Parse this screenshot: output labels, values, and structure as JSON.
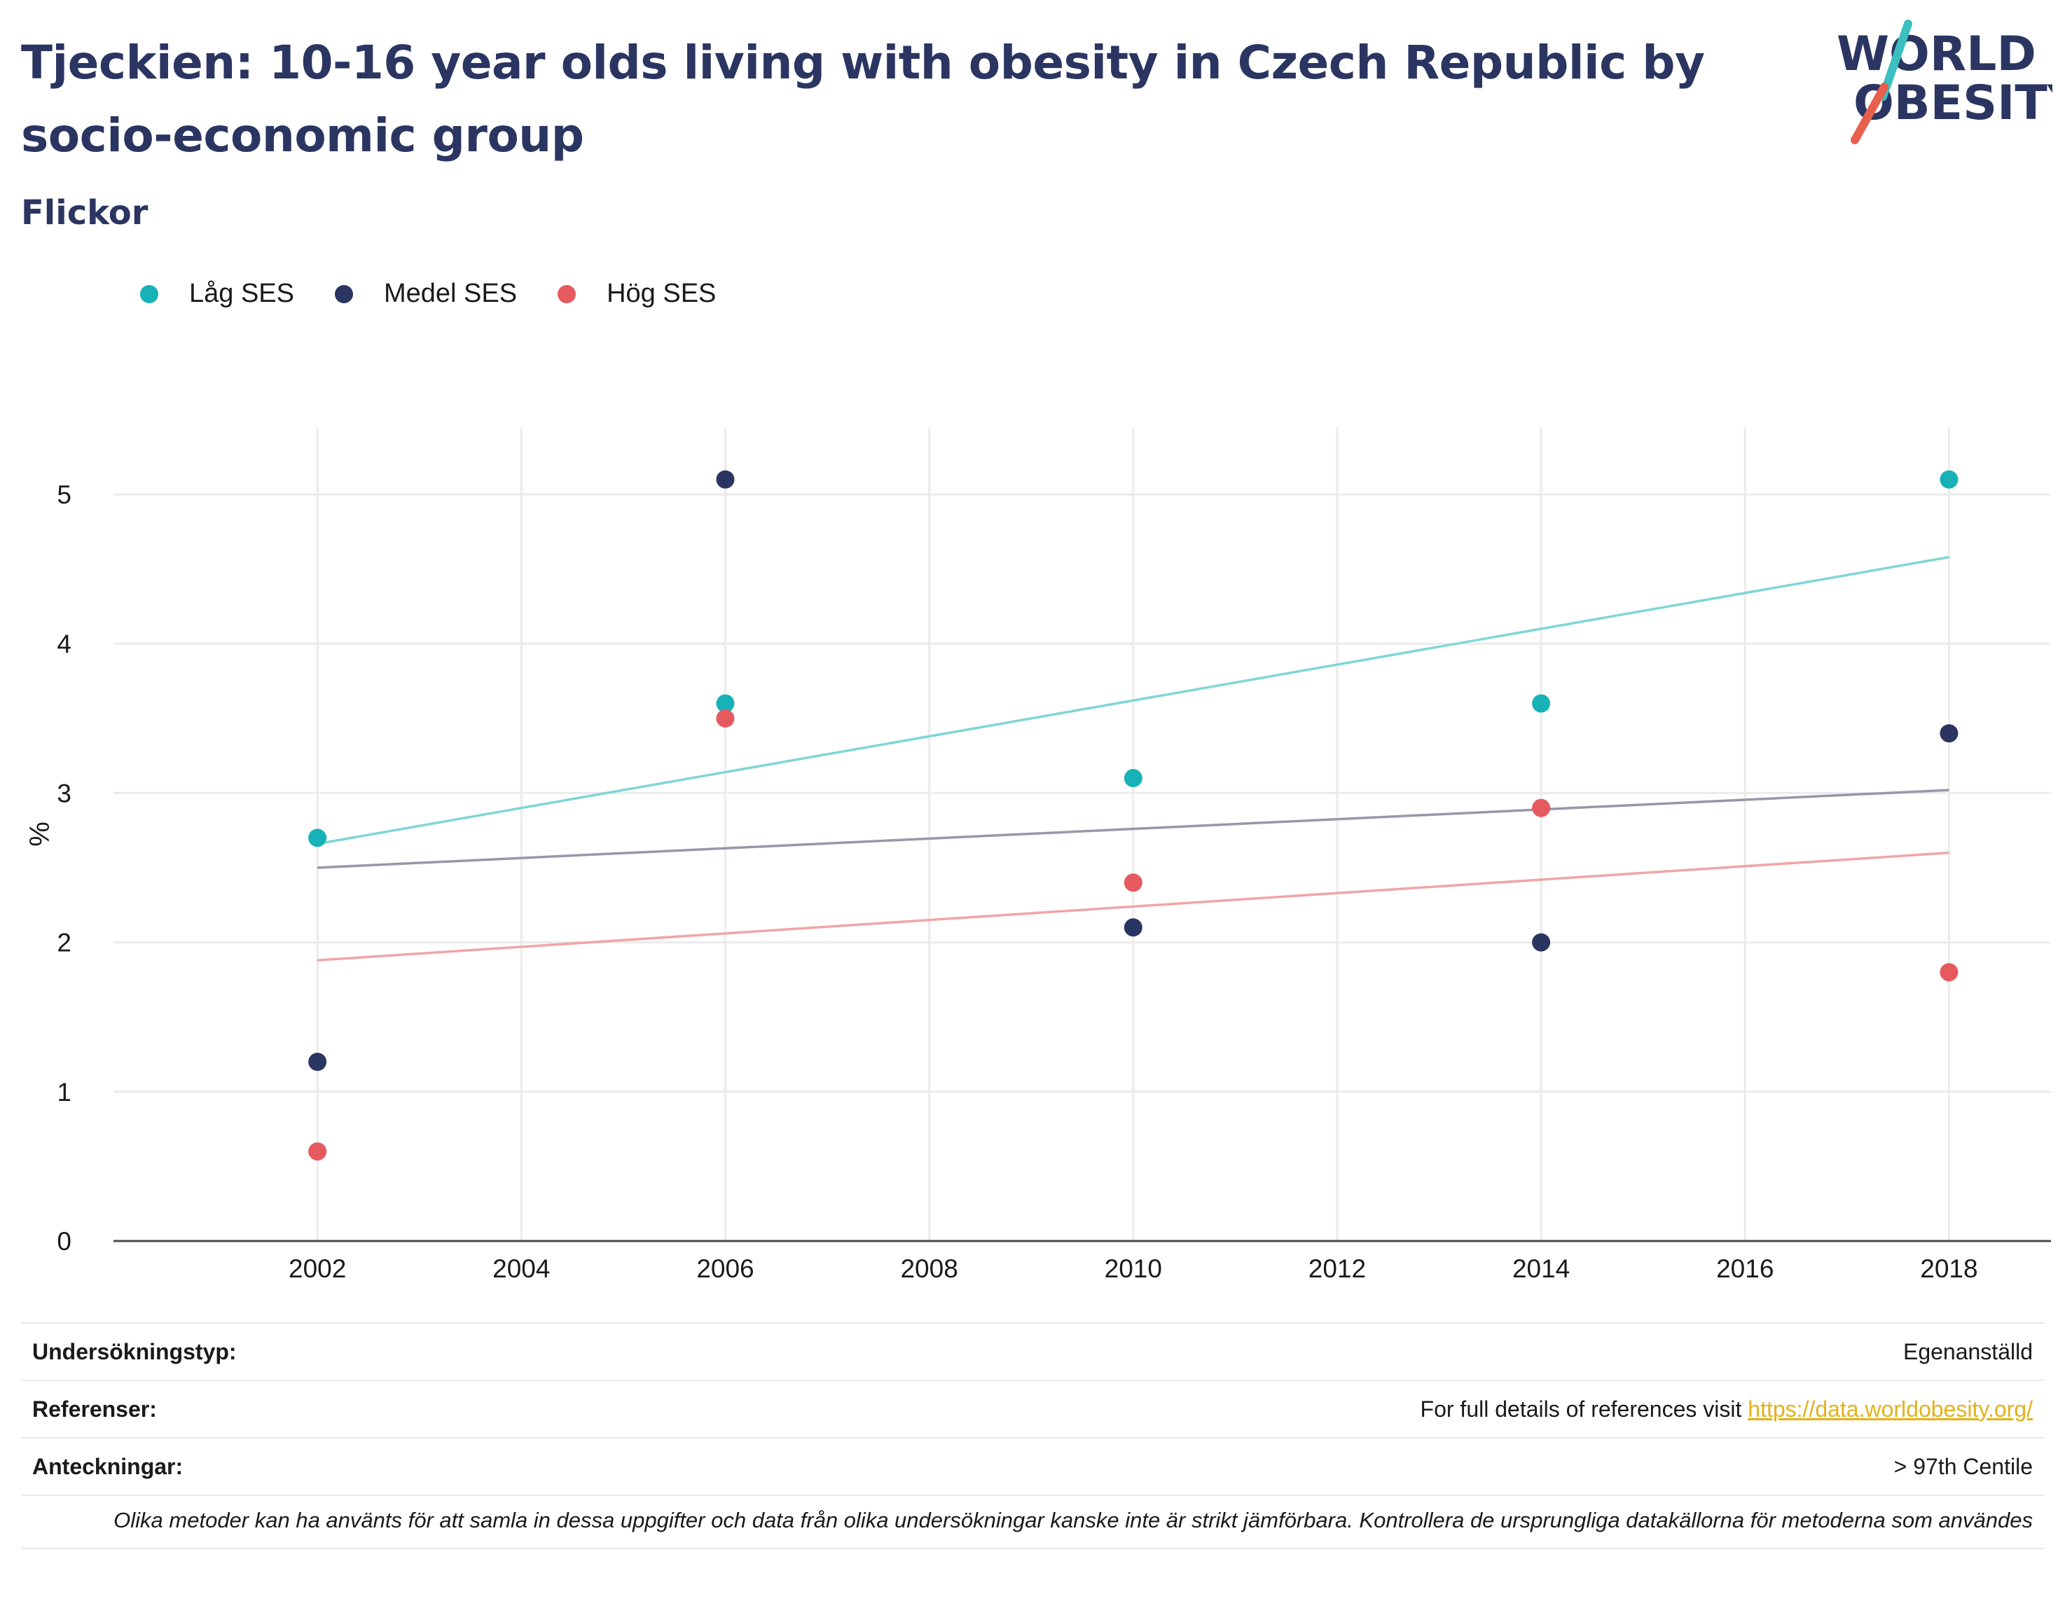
{
  "header": {
    "title": "Tjeckien: 10-16 year olds living with obesity in Czech Republic by socio-economic group",
    "subtitle": "Flickor"
  },
  "logo": {
    "line1": "WORLD",
    "line2": "OBESITY",
    "colors": {
      "text": "#2b3562",
      "slash_top": "#3bbfbf",
      "slash_bottom": "#e8604c"
    }
  },
  "legend": [
    {
      "label": "Låg SES",
      "color": "#17b2b8"
    },
    {
      "label": "Medel SES",
      "color": "#2b3562"
    },
    {
      "label": "Hög SES",
      "color": "#e55a5f"
    }
  ],
  "chart_data": {
    "type": "scatter",
    "title": "",
    "xlabel": "",
    "ylabel": "%",
    "xlim": [
      2000,
      2019
    ],
    "ylim": [
      0,
      5.45
    ],
    "x_ticks": [
      2002,
      2004,
      2006,
      2008,
      2010,
      2012,
      2014,
      2016,
      2018
    ],
    "y_ticks": [
      0,
      1,
      2,
      3,
      4,
      5
    ],
    "grid": true,
    "legend_position": "top-left",
    "series": [
      {
        "name": "Låg SES",
        "color": "#17b2b8",
        "trend_color": "#7fd6d6",
        "points": [
          [
            2002,
            2.7
          ],
          [
            2006,
            3.6
          ],
          [
            2010,
            3.1
          ],
          [
            2014,
            3.6
          ],
          [
            2018,
            5.1
          ]
        ],
        "trendline": [
          [
            2002,
            2.66
          ],
          [
            2018,
            4.58
          ]
        ]
      },
      {
        "name": "Medel SES",
        "color": "#2b3562",
        "trend_color": "#9797aa",
        "points": [
          [
            2002,
            1.2
          ],
          [
            2006,
            5.1
          ],
          [
            2010,
            2.1
          ],
          [
            2014,
            2.0
          ],
          [
            2018,
            3.4
          ]
        ],
        "trendline": [
          [
            2002,
            2.5
          ],
          [
            2018,
            3.02
          ]
        ]
      },
      {
        "name": "Hög SES",
        "color": "#e55a5f",
        "trend_color": "#f0a5a7",
        "points": [
          [
            2002,
            0.6
          ],
          [
            2006,
            3.5
          ],
          [
            2010,
            2.4
          ],
          [
            2014,
            2.9
          ],
          [
            2018,
            1.8
          ]
        ],
        "trendline": [
          [
            2002,
            1.88
          ],
          [
            2018,
            2.6
          ]
        ]
      }
    ]
  },
  "info": {
    "survey_type_label": "Undersökningstyp:",
    "survey_type_value": "Egenanställd",
    "references_label": "Referenser:",
    "references_text": "For full details of references visit ",
    "references_link": "https://data.worldobesity.org/",
    "notes_label": "Anteckningar:",
    "notes_value": "> 97th Centile",
    "disclaimer": "Olika metoder kan ha använts för att samla in dessa uppgifter och data från olika undersökningar kanske inte är strikt jämförbara. Kontrollera de ursprungliga datakällorna för metoderna som användes"
  }
}
